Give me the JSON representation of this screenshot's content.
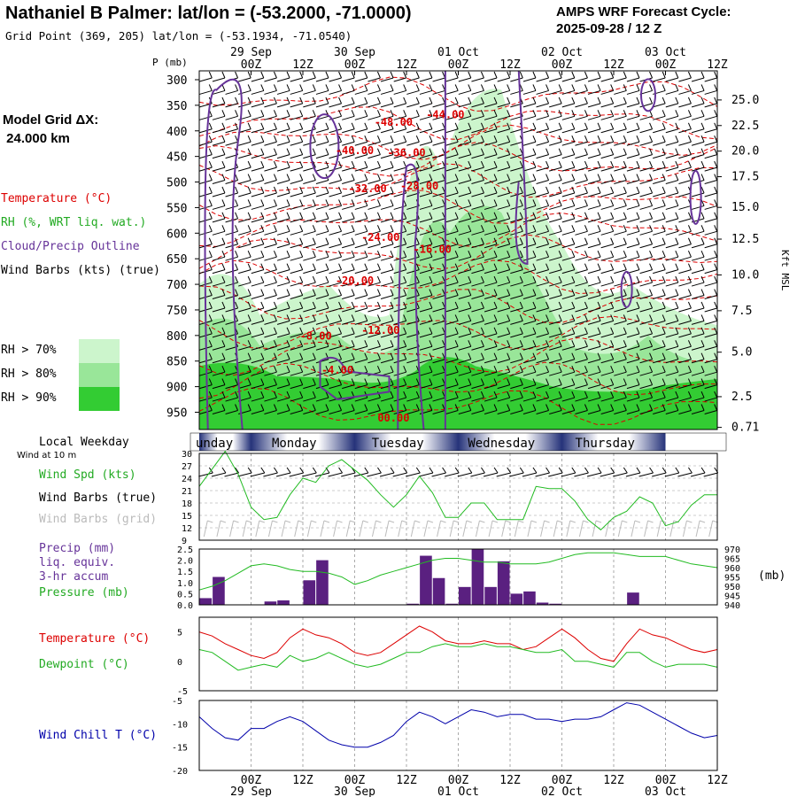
{
  "header": {
    "title": "Nathaniel B Palmer:  lat/lon = (-53.2000, -71.0000)",
    "grid_point": "Grid Point (369, 205) lat/lon = (-53.1934, -71.0540)",
    "cycle_line1": "AMPS WRF Forecast Cycle:",
    "cycle_line2": "2025-09-28 / 12  Z"
  },
  "sidebar": {
    "model_grid_line1": "Model Grid ΔX:",
    "model_grid_line2": " 24.000 km",
    "legend_temperature": "Temperature (°C)",
    "legend_rh": "RH (%, WRT liq. wat.)",
    "legend_cloud": "Cloud/Precip Outline",
    "legend_wind_barbs": "Wind Barbs (kts) (true)",
    "rh70": "RH > 70%",
    "rh80": "RH > 80%",
    "rh90": "RH > 90%",
    "local_weekday": "Local Weekday",
    "wind_10m": "Wind at 10 m",
    "wind_spd": "Wind Spd (kts)",
    "wind_barbs_true": "Wind Barbs (true)",
    "wind_barbs_grid": "Wind Barbs (grid)",
    "precip_line1": "Precip (mm)",
    "precip_line2": "liq. equiv.",
    "precip_line3": "3-hr accum",
    "pressure": "Pressure (mb)",
    "pressure_unit": "(mb)",
    "temperature": "Temperature (°C)",
    "dewpoint": "Dewpoint (°C)",
    "wind_chill": "Wind Chill T (°C)"
  },
  "colors": {
    "rh70": "#ccf5cc",
    "rh80": "#99e699",
    "rh90": "#33cc33",
    "temperature": "#dd0000",
    "cloud": "#663399",
    "wind_speed": "#22bb22",
    "dewpoint": "#22bb22",
    "precip": "#5a2080",
    "wind_chill": "#0000aa",
    "day_band": "#26337a"
  },
  "chart_data": [
    {
      "type": "heatmap",
      "name": "Time-height cross section",
      "ylabel": "P (mb)",
      "y2label": "Kft MSL",
      "pressure_levels": [
        300,
        350,
        400,
        450,
        500,
        550,
        600,
        650,
        700,
        750,
        800,
        850,
        900,
        950
      ],
      "height_kft": [
        "25.0",
        "22.5",
        "20.0",
        "17.5",
        "15.0",
        "12.5",
        "10.0",
        "7.5",
        "5.0",
        "2.5",
        "0.71"
      ],
      "height_kft_pressure": [
        350,
        400,
        450,
        500,
        560,
        622,
        692,
        762,
        843,
        930,
        990
      ],
      "x_hours": [
        0,
        120
      ],
      "time_ticks_top": [
        "00Z",
        "12Z",
        "00Z",
        "12Z",
        "00Z",
        "12Z",
        "00Z",
        "12Z",
        "00Z",
        "12Z"
      ],
      "time_ticks_hours": [
        12,
        24,
        36,
        48,
        60,
        72,
        84,
        96,
        108,
        120
      ],
      "date_labels": [
        "29 Sep",
        "30 Sep",
        "01 Oct",
        "02 Oct",
        "03 Oct"
      ],
      "date_label_hours": [
        12,
        36,
        60,
        84,
        108
      ],
      "temperature_contour_labels": [
        {
          "text": "-48.00",
          "hour": 45,
          "p": 390
        },
        {
          "text": "-44.00",
          "hour": 57,
          "p": 375
        },
        {
          "text": "-40.00",
          "hour": 36,
          "p": 445
        },
        {
          "text": "-36.00",
          "hour": 48,
          "p": 450
        },
        {
          "text": "-32.00",
          "hour": 39,
          "p": 520
        },
        {
          "text": "-28.00",
          "hour": 51,
          "p": 515
        },
        {
          "text": "-24.00",
          "hour": 42,
          "p": 615
        },
        {
          "text": "-16.00",
          "hour": 54,
          "p": 638
        },
        {
          "text": "-20.00",
          "hour": 36,
          "p": 700
        },
        {
          "text": "-12.00",
          "hour": 42,
          "p": 797
        },
        {
          "text": "-8.00",
          "hour": 27,
          "p": 808
        },
        {
          "text": "-4.00",
          "hour": 32,
          "p": 875
        },
        {
          "text": "00.00",
          "hour": 45,
          "p": 968
        }
      ],
      "rh_levels": [
        "RH > 70%",
        "RH > 80%",
        "RH > 90%"
      ],
      "wind_barbs": "true"
    },
    {
      "type": "line",
      "name": "Wind Spd (kts)",
      "x_hours": [
        0,
        6,
        9,
        12,
        15,
        18,
        21,
        24,
        27,
        30,
        33,
        36,
        39,
        42,
        45,
        48,
        51,
        54,
        57,
        60,
        63,
        66,
        69,
        72,
        75,
        78,
        81,
        84,
        87,
        90,
        93,
        96,
        99,
        102,
        105,
        108,
        111,
        114,
        117,
        120
      ],
      "values": [
        22,
        30.5,
        25,
        17,
        14,
        14.5,
        20,
        24,
        23,
        27,
        28.5,
        26,
        23.5,
        20,
        17,
        20,
        24.5,
        20.5,
        14.5,
        14.5,
        18,
        18,
        14,
        14,
        14,
        22,
        21.5,
        21.5,
        18.5,
        14,
        11.5,
        14.5,
        16,
        19.5,
        18,
        12.5,
        13.5,
        17.5,
        20,
        20
      ],
      "ylim": [
        9,
        30
      ],
      "yticks": [
        9,
        12,
        15,
        18,
        21,
        24,
        27,
        30
      ]
    },
    {
      "type": "bar",
      "name": "Precip (mm) liq. equiv. 3-hr accum",
      "x_hours": [
        1.5,
        4.5,
        16.5,
        19.5,
        25.5,
        28.5,
        49.5,
        52.5,
        55.5,
        58.5,
        61.5,
        64.5,
        67.5,
        70.5,
        73.5,
        76.5,
        79.5,
        82.5,
        100.5
      ],
      "values": [
        0.3,
        1.25,
        0.15,
        0.2,
        1.1,
        2.0,
        0.05,
        2.2,
        1.2,
        0.05,
        0.8,
        2.5,
        0.8,
        1.95,
        0.5,
        0.6,
        0.1,
        0.05,
        0.55
      ],
      "ylim": [
        0,
        2.5
      ],
      "yticks": [
        "0.0",
        "0.5",
        "1.0",
        "1.5",
        "2.0",
        "2.5"
      ]
    },
    {
      "type": "line",
      "name": "Pressure (mb)",
      "x_hours": [
        0,
        3,
        6,
        9,
        12,
        15,
        18,
        21,
        24,
        27,
        30,
        33,
        36,
        39,
        42,
        45,
        48,
        51,
        54,
        57,
        60,
        63,
        66,
        69,
        72,
        75,
        78,
        81,
        84,
        87,
        90,
        93,
        96,
        99,
        102,
        105,
        108,
        111,
        114,
        117,
        120
      ],
      "values": [
        948,
        950,
        953,
        957,
        961,
        962,
        961,
        959,
        958,
        958,
        957,
        955,
        951,
        953,
        956,
        958,
        960,
        962,
        964,
        965,
        965,
        964,
        963,
        963,
        962,
        962,
        962,
        963,
        965,
        967,
        968,
        968,
        968,
        967,
        966,
        966,
        966,
        964,
        962,
        961,
        960
      ],
      "ylim": [
        940,
        970
      ],
      "yticks": [
        940,
        945,
        950,
        955,
        960,
        965,
        970
      ]
    },
    {
      "type": "line",
      "name": "Temperature / Dewpoint (°C)",
      "x_hours": [
        0,
        3,
        6,
        9,
        12,
        15,
        18,
        21,
        24,
        27,
        30,
        33,
        36,
        39,
        42,
        45,
        48,
        51,
        54,
        57,
        60,
        63,
        66,
        69,
        72,
        75,
        78,
        81,
        84,
        87,
        90,
        93,
        96,
        99,
        102,
        105,
        108,
        111,
        114,
        117,
        120
      ],
      "series": [
        {
          "name": "Temperature",
          "values": [
            5,
            4.3,
            3,
            2,
            1,
            0.5,
            1.5,
            4,
            5.5,
            4.5,
            4,
            3,
            1.5,
            1,
            1.5,
            3,
            4.5,
            6,
            5,
            3.5,
            3,
            3,
            3.5,
            3,
            3,
            2,
            2.5,
            4,
            5.5,
            4,
            2,
            0.5,
            0,
            3,
            5.5,
            4.5,
            4,
            3,
            2,
            1.5,
            2
          ]
        },
        {
          "name": "Dewpoint",
          "values": [
            2,
            1.5,
            0,
            -1.5,
            -1,
            -0.5,
            -1,
            1,
            0,
            0.5,
            1.5,
            0.5,
            -0.5,
            -1,
            -0.5,
            0.5,
            1.5,
            1.5,
            2.5,
            3,
            2.5,
            2.5,
            3,
            2.5,
            2.5,
            2,
            1.5,
            1.5,
            2,
            0,
            0,
            -0.5,
            -1,
            1.5,
            1.5,
            0,
            -1,
            -0.5,
            -0.5,
            -0.5,
            -1
          ]
        }
      ],
      "ylim": [
        -5,
        7.5
      ],
      "yticks": [
        -5,
        0,
        5
      ]
    },
    {
      "type": "line",
      "name": "Wind Chill T (°C)",
      "x_hours": [
        0,
        3,
        6,
        9,
        12,
        15,
        18,
        21,
        24,
        27,
        30,
        33,
        36,
        39,
        42,
        45,
        48,
        51,
        54,
        57,
        60,
        63,
        66,
        69,
        72,
        75,
        78,
        81,
        84,
        87,
        90,
        93,
        96,
        99,
        102,
        105,
        108,
        111,
        114,
        117,
        120
      ],
      "values": [
        -8.5,
        -11,
        -13,
        -13.5,
        -11,
        -11,
        -9.5,
        -8.5,
        -9.5,
        -11.5,
        -13.5,
        -14.5,
        -15,
        -15,
        -14,
        -12.5,
        -9.5,
        -7.5,
        -8.5,
        -10,
        -8.5,
        -7,
        -7.5,
        -8.5,
        -8,
        -8,
        -9,
        -9,
        -9.5,
        -9,
        -9,
        -8.5,
        -7,
        -5.5,
        -6,
        -7.5,
        -9,
        -10.5,
        -12,
        -13,
        -12.5
      ],
      "ylim": [
        -20,
        -5
      ],
      "yticks": [
        -5,
        -10,
        -15,
        -20
      ]
    }
  ],
  "weekdays": {
    "labels": [
      "unday",
      "Monday",
      "Tuesday",
      "Wednesday",
      "Thursday"
    ],
    "start_hours": [
      0,
      12,
      36,
      60,
      84,
      108
    ],
    "label_hours": [
      1,
      22,
      46,
      70,
      94
    ]
  },
  "bottom_axis": {
    "time_ticks": [
      "00Z",
      "12Z",
      "00Z",
      "12Z",
      "00Z",
      "12Z",
      "00Z",
      "12Z",
      "00Z",
      "12Z"
    ],
    "date_labels": [
      "29 Sep",
      "30 Sep",
      "01 Oct",
      "02 Oct",
      "03 Oct"
    ]
  }
}
